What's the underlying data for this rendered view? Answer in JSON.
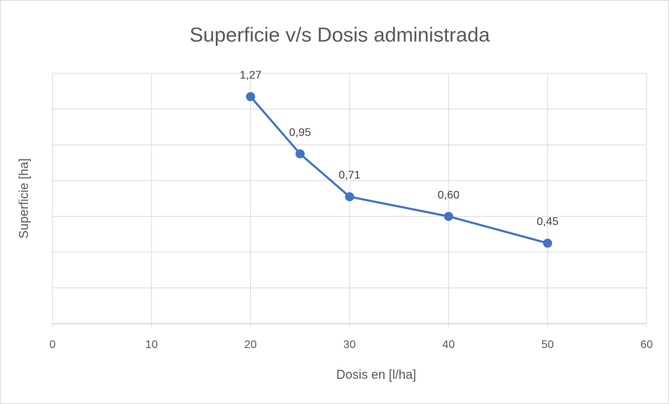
{
  "chart_data": {
    "type": "line",
    "title": "Superficie v/s Dosis administrada",
    "x_label": "Dosis en [l/ha]",
    "y_label": "Superficie [ha]",
    "x": [
      20,
      25,
      30,
      40,
      50
    ],
    "values": [
      1.27,
      0.95,
      0.71,
      0.6,
      0.45
    ],
    "value_labels": [
      "1,27",
      "0,95",
      "0,71",
      "0,60",
      "0,45"
    ],
    "color": "#4472c4",
    "xlim": [
      0,
      60
    ],
    "xticks": [
      0,
      10,
      20,
      30,
      40,
      50,
      60
    ],
    "ylim": [
      0,
      1.4
    ],
    "yticks": [
      0,
      0.2,
      0.4,
      0.6,
      0.8,
      1.0,
      1.2,
      1.4
    ],
    "grid": true
  }
}
